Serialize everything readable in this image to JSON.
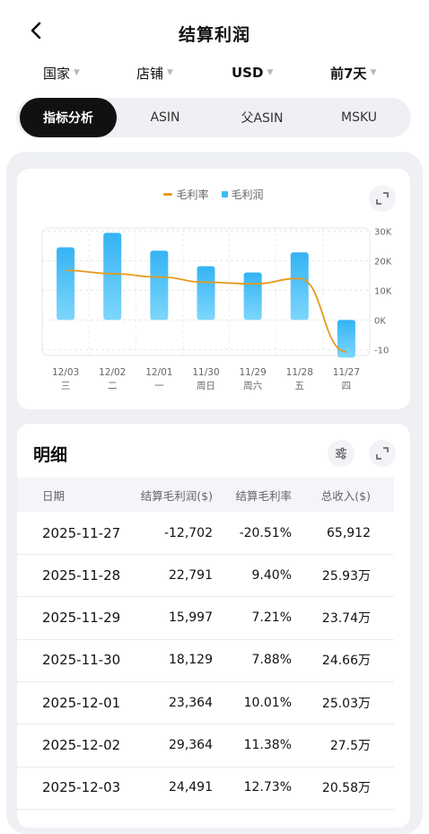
{
  "header": {
    "title": "结算利润",
    "back_icon": "chevron-left-icon"
  },
  "filters": [
    {
      "label": "国家"
    },
    {
      "label": "店铺"
    },
    {
      "label": "USD"
    },
    {
      "label": "前7天"
    }
  ],
  "tabs": [
    {
      "label": "指标分析",
      "active": true
    },
    {
      "label": "ASIN",
      "active": false
    },
    {
      "label": "父ASIN",
      "active": false
    },
    {
      "label": "MSKU",
      "active": false
    }
  ],
  "chart_data": {
    "type": "bar",
    "categories": [
      "12/03",
      "12/02",
      "12/01",
      "11/30",
      "11/29",
      "11/28",
      "11/27"
    ],
    "weekdays": [
      "三",
      "二",
      "一",
      "周日",
      "周六",
      "五",
      "四"
    ],
    "series": [
      {
        "name": "毛利润",
        "type": "bar",
        "axis": "right",
        "color": "#3ebbf5",
        "values": [
          24491,
          29364,
          23364,
          18129,
          15997,
          22791,
          -12702
        ]
      },
      {
        "name": "毛利率",
        "type": "line",
        "axis": "hidden",
        "color": "#e69a1d",
        "values": [
          12.73,
          11.38,
          10.01,
          7.88,
          7.21,
          9.4,
          -20.51
        ]
      }
    ],
    "y_ticks": [
      "30K",
      "20K",
      "10K",
      "0K",
      "-10"
    ],
    "ylim": [
      -12000,
      31000
    ],
    "grid": true,
    "legend": "top-center"
  },
  "detail": {
    "title": "明细",
    "columns": [
      "日期",
      "结算毛利润($)",
      "结算毛利率",
      "总收入($)"
    ],
    "rows": [
      [
        "2025-11-27",
        "-12,702",
        "-20.51%",
        "65,912"
      ],
      [
        "2025-11-28",
        "22,791",
        "9.40%",
        "25.93万"
      ],
      [
        "2025-11-29",
        "15,997",
        "7.21%",
        "23.74万"
      ],
      [
        "2025-11-30",
        "18,129",
        "7.88%",
        "24.66万"
      ],
      [
        "2025-12-01",
        "23,364",
        "10.01%",
        "25.03万"
      ],
      [
        "2025-12-02",
        "29,364",
        "11.38%",
        "27.5万"
      ],
      [
        "2025-12-03",
        "24,491",
        "12.73%",
        "20.58万"
      ]
    ]
  }
}
